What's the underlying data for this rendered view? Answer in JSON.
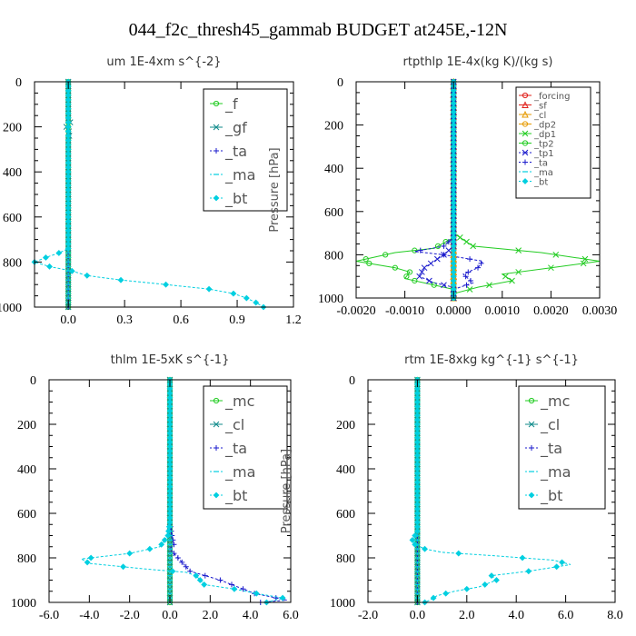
{
  "page_title": "044_f2c_thresh45_gammab  BUDGET at245E,-12N",
  "colors": {
    "green": "#22cc22",
    "teal": "#0f8a8a",
    "blue": "#1a1acc",
    "cyan": "#00cfe0",
    "red": "#e0201a",
    "orange": "#e69a00",
    "magenta": "#cc22cc"
  },
  "chart_data": [
    {
      "type": "line",
      "title": "um   1E-4xm s^{-2}",
      "ylabel": "Pressure  [hPa]",
      "xlim": [
        -0.18,
        1.2
      ],
      "ylim": [
        1000,
        0
      ],
      "xticks": [
        {
          "v": 0,
          "l": "0.0"
        },
        {
          "v": 0.3,
          "l": "0.3"
        },
        {
          "v": 0.6,
          "l": "0.6"
        },
        {
          "v": 0.9,
          "l": "0.9"
        },
        {
          "v": 1.2,
          "l": "1.2"
        }
      ],
      "yticks": [
        0,
        200,
        400,
        600,
        800,
        1000
      ],
      "legend": {
        "font": 16,
        "spacing": 26,
        "entries": [
          "_f",
          "_gf",
          "_ta",
          "_ma",
          "_bt"
        ]
      },
      "series": [
        {
          "name": "_f",
          "color": "green",
          "marker": "circle",
          "style": "solid",
          "points": [
            [
              0,
              0
            ],
            [
              0,
              1000
            ]
          ]
        },
        {
          "name": "_gf",
          "color": "teal",
          "marker": "x",
          "style": "solid",
          "points": [
            [
              0,
              0
            ],
            [
              0,
              160
            ],
            [
              -0.01,
              170
            ],
            [
              0.01,
              180
            ],
            [
              -0.01,
              200
            ],
            [
              0.01,
              230
            ],
            [
              0,
              250
            ],
            [
              0,
              1000
            ]
          ]
        },
        {
          "name": "_ta",
          "color": "blue",
          "marker": "plus",
          "style": "dashed",
          "points": [
            [
              0,
              0
            ],
            [
              0,
              1000
            ]
          ]
        },
        {
          "name": "_ma",
          "color": "cyan",
          "marker": "dash",
          "style": "dashed",
          "points": [
            [
              0,
              0
            ],
            [
              0,
              1000
            ]
          ]
        },
        {
          "name": "_bt",
          "color": "cyan",
          "marker": "diamond",
          "style": "dashed",
          "points": [
            [
              0,
              0
            ],
            [
              0,
              740
            ],
            [
              -0.05,
              760
            ],
            [
              -0.12,
              780
            ],
            [
              -0.18,
              800
            ],
            [
              -0.1,
              820
            ],
            [
              0.02,
              840
            ],
            [
              0.1,
              860
            ],
            [
              0.28,
              880
            ],
            [
              0.52,
              900
            ],
            [
              0.75,
              920
            ],
            [
              0.88,
              940
            ],
            [
              0.95,
              960
            ],
            [
              1.0,
              980
            ],
            [
              1.04,
              1000
            ]
          ]
        }
      ]
    },
    {
      "type": "line",
      "title": "rtpthlp   1E-4x(kg K)/(kg s)",
      "ylabel": "Pressure  [hPa]",
      "xlim": [
        -0.002,
        0.003
      ],
      "ylim": [
        1000,
        0
      ],
      "xticks": [
        {
          "v": -0.002,
          "l": "-0.0020"
        },
        {
          "v": -0.001,
          "l": "-0.0010"
        },
        {
          "v": 0,
          "l": "0.0000"
        },
        {
          "v": 0.001,
          "l": "0.0010"
        },
        {
          "v": 0.002,
          "l": "0.0020"
        },
        {
          "v": 0.003,
          "l": "0.0030"
        }
      ],
      "yticks": [
        0,
        200,
        400,
        600,
        800,
        1000
      ],
      "legend": {
        "font": 10,
        "spacing": 10.5,
        "entries": [
          "_forcing",
          "_sf",
          "_cl",
          "_dp2",
          "_dp1",
          "_tp2",
          "_tp1",
          "_ta",
          "_ma",
          "_bt"
        ]
      },
      "series": [
        {
          "name": "_forcing",
          "color": "red",
          "marker": "circle",
          "style": "solid",
          "points": [
            [
              0,
              0
            ],
            [
              0,
              1000
            ]
          ]
        },
        {
          "name": "_sf",
          "color": "red",
          "marker": "tri",
          "style": "solid",
          "points": [
            [
              0,
              0
            ],
            [
              0,
              1000
            ]
          ]
        },
        {
          "name": "_cl",
          "color": "orange",
          "marker": "tri",
          "style": "solid",
          "points": [
            [
              0,
              0
            ],
            [
              0,
              1000
            ]
          ]
        },
        {
          "name": "_dp2",
          "color": "orange",
          "marker": "circle",
          "style": "solid",
          "points": [
            [
              0,
              0
            ],
            [
              0,
              1000
            ]
          ]
        },
        {
          "name": "_dp1",
          "color": "green",
          "marker": "x",
          "style": "solid",
          "points": [
            [
              0,
              0
            ],
            [
              0,
              700
            ],
            [
              0.0004,
              760
            ],
            [
              0.0018,
              790
            ],
            [
              0.003,
              830
            ],
            [
              0.002,
              860
            ],
            [
              0.001,
              890
            ],
            [
              0.0012,
              920
            ],
            [
              0.0005,
              950
            ],
            [
              0,
              980
            ],
            [
              0,
              1000
            ]
          ]
        },
        {
          "name": "_tp2",
          "color": "green",
          "marker": "circle",
          "style": "solid",
          "points": [
            [
              0,
              0
            ],
            [
              0,
              720
            ],
            [
              -0.0004,
              770
            ],
            [
              -0.0012,
              790
            ],
            [
              -0.002,
              830
            ],
            [
              -0.0012,
              860
            ],
            [
              -0.0009,
              880
            ],
            [
              -0.001,
              910
            ],
            [
              -0.0004,
              940
            ],
            [
              0,
              960
            ],
            [
              0,
              1000
            ]
          ]
        },
        {
          "name": "_tp1",
          "color": "blue",
          "marker": "x",
          "style": "dashed",
          "points": [
            [
              0,
              0
            ],
            [
              0,
              760
            ],
            [
              -0.0002,
              800
            ],
            [
              -0.0006,
              860
            ],
            [
              -0.0007,
              900
            ],
            [
              -0.0004,
              930
            ],
            [
              0,
              950
            ],
            [
              0,
              1000
            ]
          ]
        },
        {
          "name": "_ta",
          "color": "blue",
          "marker": "plus",
          "style": "dashed",
          "points": [
            [
              0,
              0
            ],
            [
              0,
              720
            ],
            [
              -0.0002,
              760
            ],
            [
              -0.0008,
              785
            ],
            [
              -0.0002,
              800
            ],
            [
              0.0006,
              830
            ],
            [
              0.0005,
              860
            ],
            [
              0.0002,
              890
            ],
            [
              0.0004,
              930
            ],
            [
              0,
              960
            ],
            [
              0,
              1000
            ]
          ]
        },
        {
          "name": "_ma",
          "color": "cyan",
          "marker": "dash",
          "style": "dashed",
          "points": [
            [
              0,
              0
            ],
            [
              0,
              1000
            ]
          ]
        },
        {
          "name": "_bt",
          "color": "cyan",
          "marker": "diamond",
          "style": "dashed",
          "points": [
            [
              0,
              0
            ],
            [
              0,
              1000
            ]
          ]
        }
      ]
    },
    {
      "type": "line",
      "title": "thlm   1E-5xK  s^{-1}",
      "ylabel": "Pressure  [hPa]",
      "xlim": [
        -6,
        6
      ],
      "ylim": [
        1000,
        0
      ],
      "xticks": [
        {
          "v": -6,
          "l": "-6.0"
        },
        {
          "v": -4,
          "l": "-4.0"
        },
        {
          "v": -2,
          "l": "-2.0"
        },
        {
          "v": 0,
          "l": "0.0"
        },
        {
          "v": 2,
          "l": "2.0"
        },
        {
          "v": 4,
          "l": "4.0"
        },
        {
          "v": 6,
          "l": "6.0"
        }
      ],
      "yticks": [
        0,
        200,
        400,
        600,
        800,
        1000
      ],
      "legend": {
        "font": 16,
        "spacing": 26,
        "entries": [
          "_mc",
          "_cl",
          "_ta",
          "_ma",
          "_bt"
        ]
      },
      "series": [
        {
          "name": "_mc",
          "color": "green",
          "marker": "circle",
          "style": "solid",
          "points": [
            [
              0,
              0
            ],
            [
              0,
              1000
            ]
          ]
        },
        {
          "name": "_cl",
          "color": "teal",
          "marker": "x",
          "style": "solid",
          "points": [
            [
              0,
              0
            ],
            [
              0,
              1000
            ]
          ]
        },
        {
          "name": "_ta",
          "color": "blue",
          "marker": "plus",
          "style": "dashed",
          "points": [
            [
              0,
              0
            ],
            [
              0,
              640
            ],
            [
              0.1,
              700
            ],
            [
              0.2,
              740
            ],
            [
              0,
              760
            ],
            [
              1.0,
              860
            ],
            [
              2.5,
              900
            ],
            [
              4.2,
              960
            ],
            [
              5.8,
              990
            ],
            [
              4.5,
              1000
            ]
          ]
        },
        {
          "name": "_ma",
          "color": "cyan",
          "marker": "dash",
          "style": "dashed",
          "points": [
            [
              0,
              0
            ],
            [
              0,
              1000
            ]
          ]
        },
        {
          "name": "_bt",
          "color": "cyan",
          "marker": "diamond",
          "style": "dashed",
          "points": [
            [
              0,
              0
            ],
            [
              0,
              640
            ],
            [
              -0.1,
              700
            ],
            [
              -0.5,
              750
            ],
            [
              -2.0,
              780
            ],
            [
              -4.4,
              805
            ],
            [
              -4.0,
              825
            ],
            [
              -1.2,
              850
            ],
            [
              0.8,
              865
            ],
            [
              1.3,
              880
            ],
            [
              1.7,
              920
            ],
            [
              3.2,
              940
            ],
            [
              4.3,
              960
            ],
            [
              5.6,
              980
            ],
            [
              4.8,
              1000
            ]
          ]
        }
      ]
    },
    {
      "type": "line",
      "title": "rtm   1E-8xkg kg^{-1} s^{-1}",
      "ylabel": "Pressure  [hPa]",
      "xlim": [
        -2,
        8
      ],
      "ylim": [
        1000,
        0
      ],
      "xticks": [
        {
          "v": -2,
          "l": "-2.0"
        },
        {
          "v": 0,
          "l": "0.0"
        },
        {
          "v": 2,
          "l": "2.0"
        },
        {
          "v": 4,
          "l": "4.0"
        },
        {
          "v": 6,
          "l": "6.0"
        },
        {
          "v": 8,
          "l": "8.0"
        }
      ],
      "yticks": [
        0,
        200,
        400,
        600,
        800,
        1000
      ],
      "legend": {
        "font": 16,
        "spacing": 26,
        "entries": [
          "_mc",
          "_cl",
          "_ta",
          "_ma",
          "_bt"
        ]
      },
      "series": [
        {
          "name": "_mc",
          "color": "green",
          "marker": "circle",
          "style": "solid",
          "points": [
            [
              0,
              0
            ],
            [
              0,
              1000
            ]
          ]
        },
        {
          "name": "_cl",
          "color": "teal",
          "marker": "x",
          "style": "solid",
          "points": [
            [
              0,
              0
            ],
            [
              0,
              1000
            ]
          ]
        },
        {
          "name": "_ta",
          "color": "blue",
          "marker": "plus",
          "style": "dashed",
          "points": [
            [
              0,
              0
            ],
            [
              0,
              1000
            ]
          ]
        },
        {
          "name": "_ma",
          "color": "cyan",
          "marker": "dash",
          "style": "dashed",
          "points": [
            [
              0,
              0
            ],
            [
              0,
              1000
            ]
          ]
        },
        {
          "name": "_bt",
          "color": "cyan",
          "marker": "diamond",
          "style": "dashed",
          "points": [
            [
              0,
              0
            ],
            [
              0,
              680
            ],
            [
              -0.2,
              720
            ],
            [
              -0.1,
              740
            ],
            [
              0.3,
              760
            ],
            [
              1.0,
              775
            ],
            [
              3.0,
              790
            ],
            [
              5.5,
              810
            ],
            [
              6.2,
              830
            ],
            [
              4.5,
              860
            ],
            [
              3.0,
              880
            ],
            [
              3.2,
              900
            ],
            [
              2.5,
              930
            ],
            [
              1.5,
              950
            ],
            [
              0.8,
              970
            ],
            [
              0.5,
              990
            ],
            [
              0.3,
              1000
            ]
          ]
        }
      ]
    }
  ]
}
